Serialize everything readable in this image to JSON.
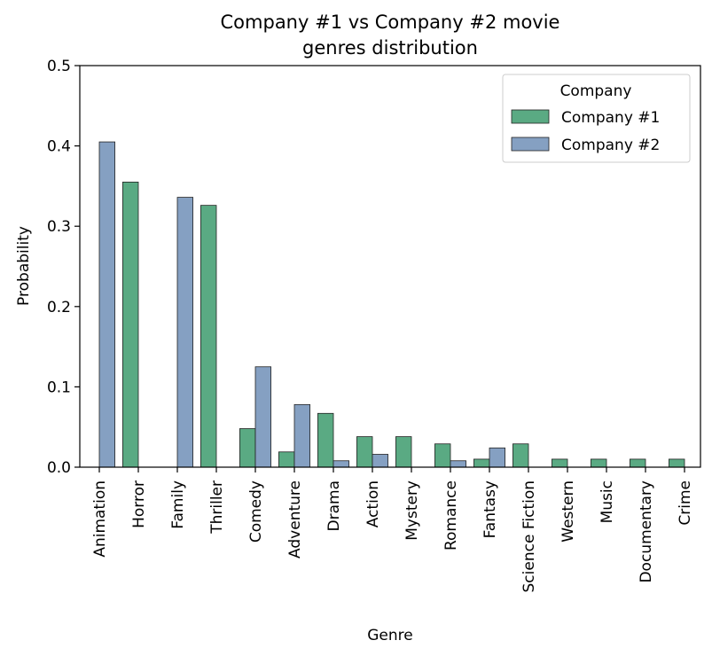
{
  "chart_data": {
    "type": "bar",
    "title_lines": [
      "Company #1 vs Company #2 movie",
      "genres distribution"
    ],
    "xlabel": "Genre",
    "ylabel": "Probability",
    "ylim": [
      0,
      0.5
    ],
    "yticks": [
      "0.0",
      "0.1",
      "0.2",
      "0.3",
      "0.4",
      "0.5"
    ],
    "categories": [
      "Animation",
      "Horror",
      "Family",
      "Thriller",
      "Comedy",
      "Adventure",
      "Drama",
      "Action",
      "Mystery",
      "Romance",
      "Fantasy",
      "Science Fiction",
      "Western",
      "Music",
      "Documentary",
      "Crime"
    ],
    "legend": {
      "title": "Company",
      "placement": "top-right"
    },
    "series": [
      {
        "name": "Company #1",
        "color": "#5aaa83",
        "values": [
          0,
          0.355,
          0,
          0.326,
          0.048,
          0.019,
          0.067,
          0.038,
          0.038,
          0.029,
          0.01,
          0.029,
          0.01,
          0.01,
          0.01,
          0.01
        ]
      },
      {
        "name": "Company #2",
        "color": "#85a0c2",
        "values": [
          0.405,
          0,
          0.336,
          0,
          0.125,
          0.078,
          0.008,
          0.016,
          0,
          0.008,
          0.024,
          0,
          0,
          0,
          0,
          0
        ]
      }
    ]
  }
}
